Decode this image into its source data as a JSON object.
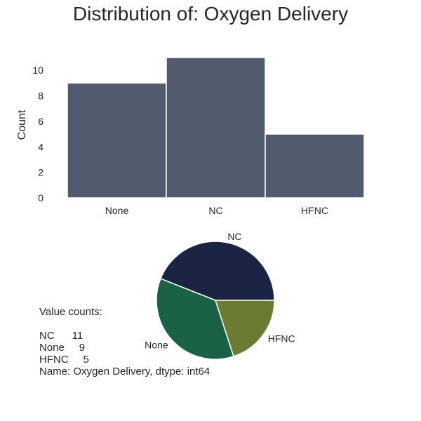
{
  "chart_data": [
    {
      "type": "bar",
      "title": "Distribution of: Oxygen Delivery",
      "xlabel": "",
      "ylabel": "Count",
      "categories": [
        "None",
        "NC",
        "HFNC"
      ],
      "values": [
        9,
        11,
        5
      ],
      "yticks": [
        0,
        2,
        4,
        6,
        8,
        10
      ],
      "ylim": [
        0,
        11
      ],
      "color": "#525a6e",
      "grid": false
    },
    {
      "type": "pie",
      "labels": [
        "NC",
        "None",
        "HFNC"
      ],
      "values": [
        11,
        9,
        5
      ],
      "colors": [
        "#1b2443",
        "#1b6145",
        "#6b7b32"
      ]
    }
  ],
  "value_counts_text": "Value counts:\n\nNC      11\nNone     9\nHFNC     5\nName: Oxygen Delivery, dtype: int64"
}
